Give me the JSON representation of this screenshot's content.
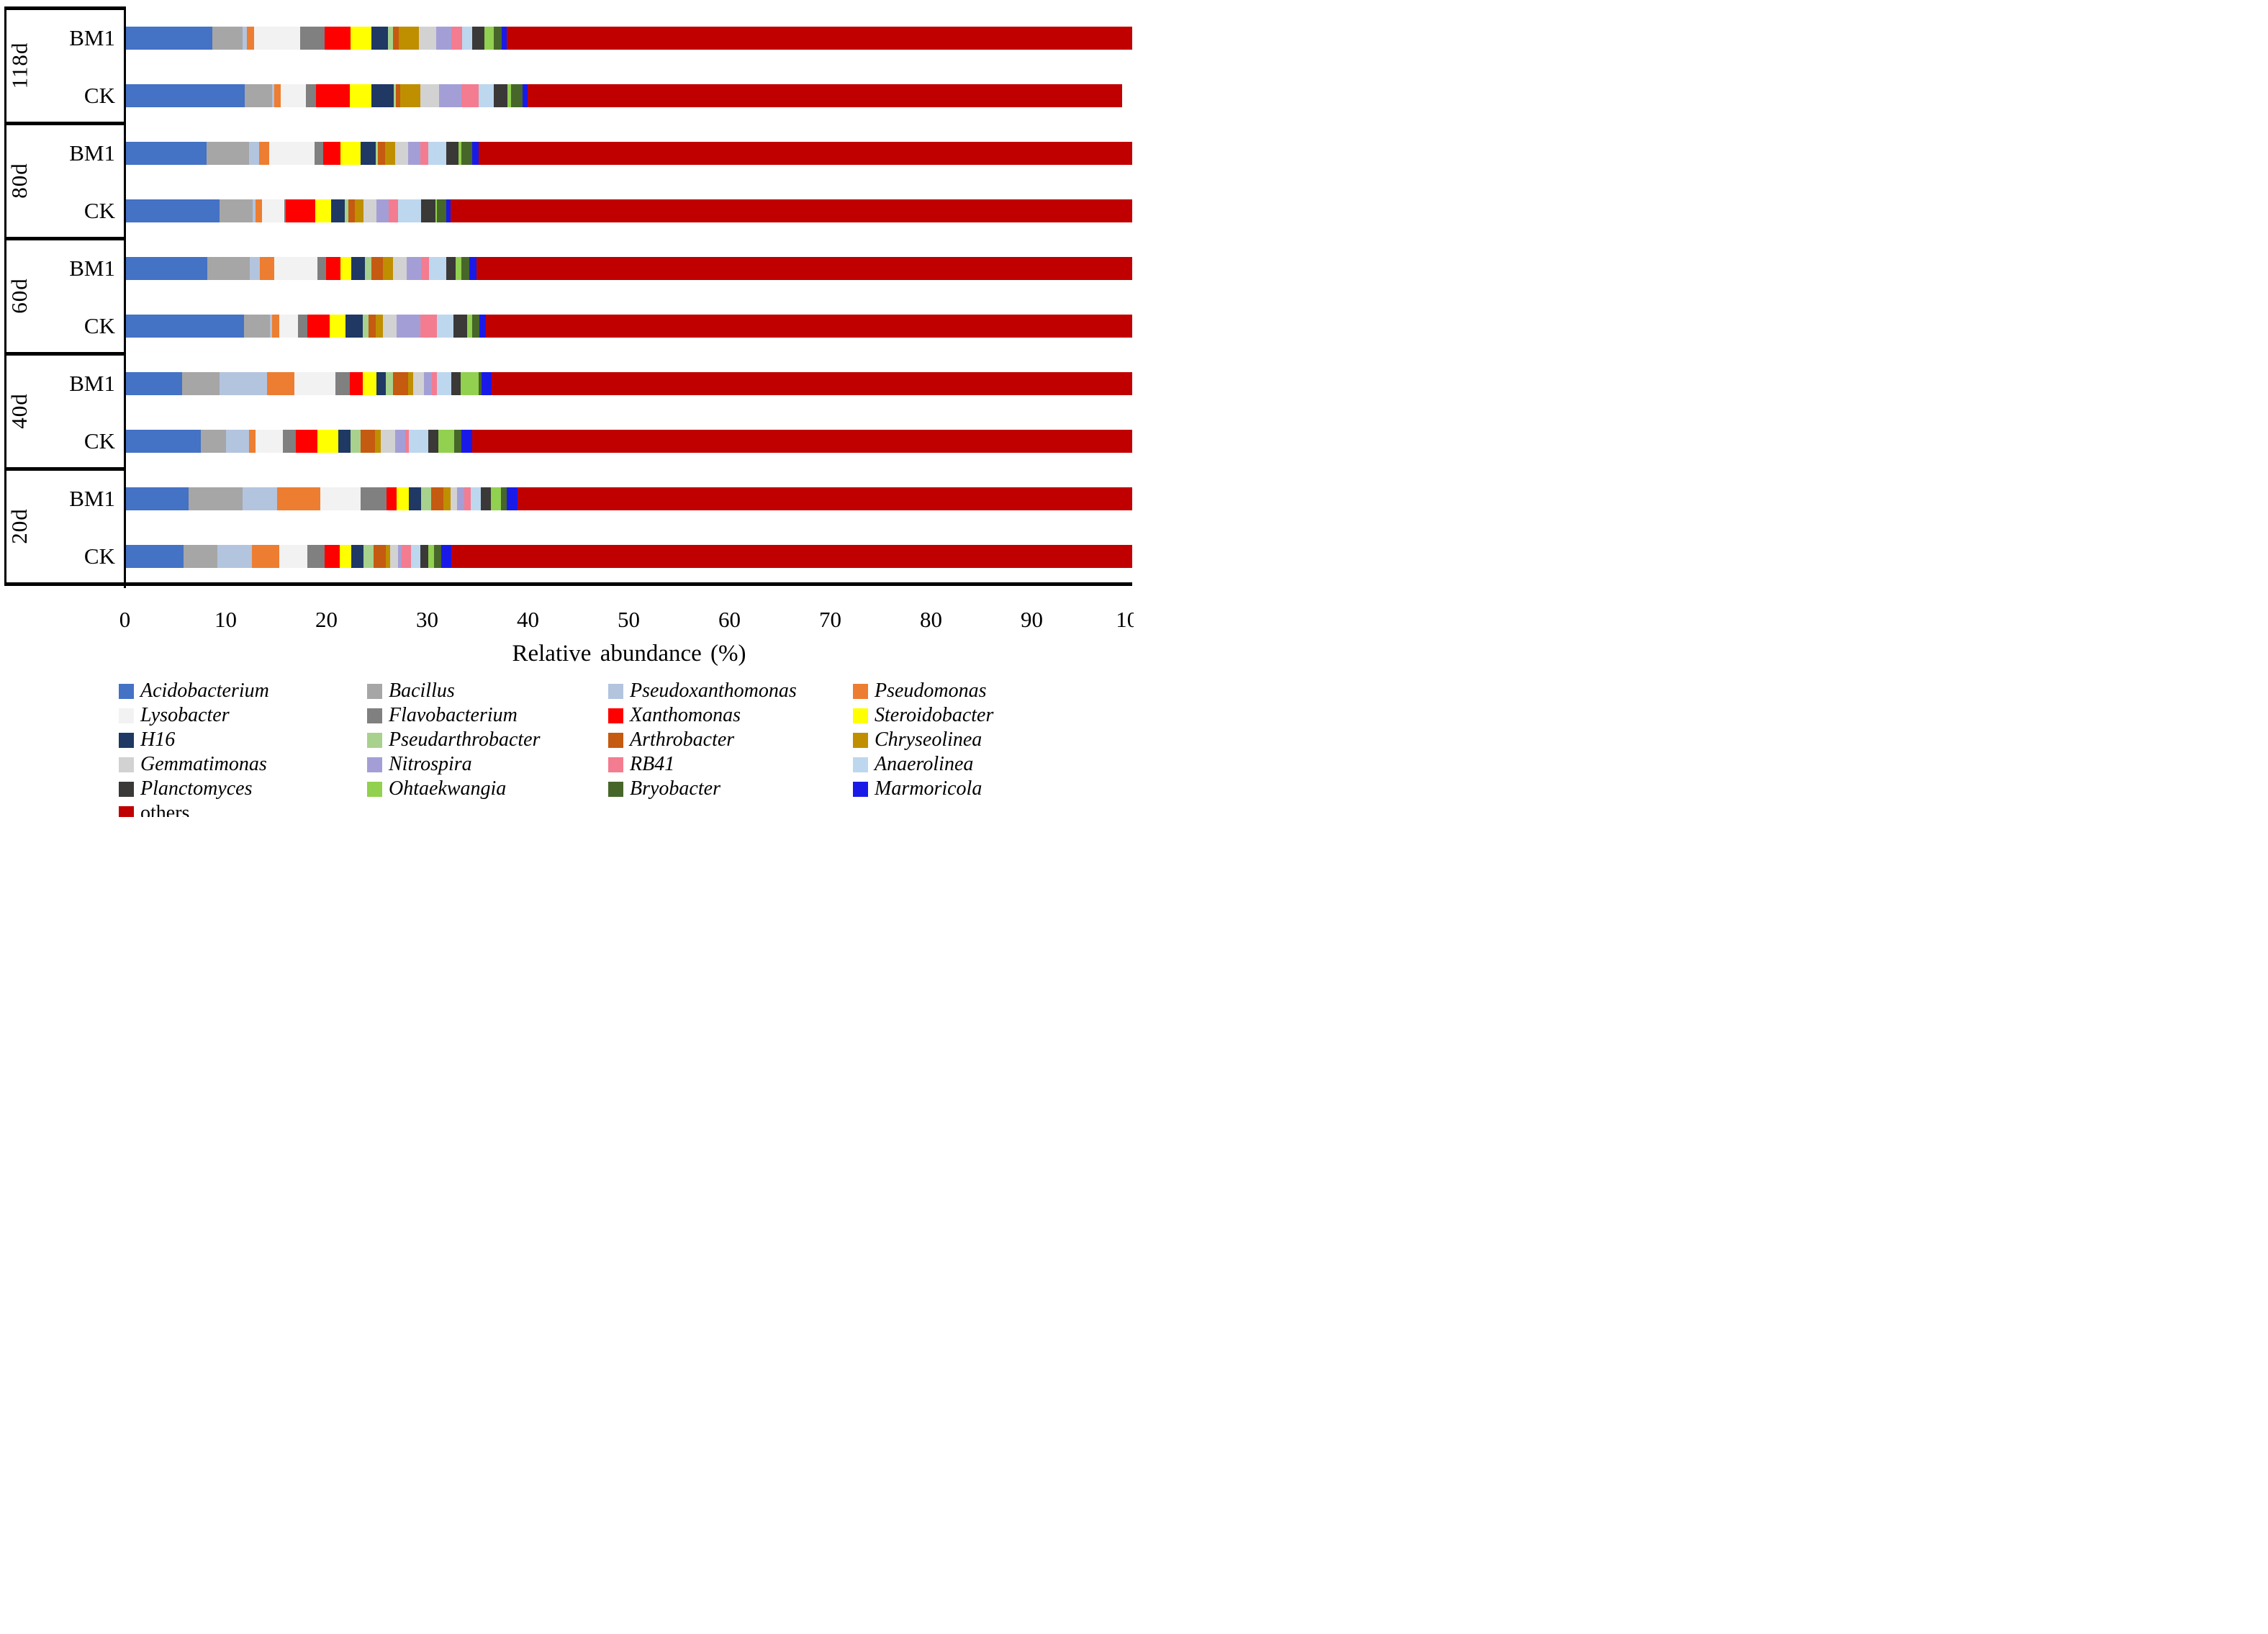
{
  "chart_data": {
    "type": "bar",
    "orientation": "horizontal-stacked",
    "xlabel": "Relative  abundance (%)",
    "xlim": [
      0,
      100
    ],
    "x_ticks": [
      0,
      10,
      20,
      30,
      40,
      50,
      60,
      70,
      80,
      90,
      100
    ],
    "grid": false,
    "legend_position": "bottom",
    "series_names": [
      "Acidobacterium",
      "Bacillus",
      "Pseudoxanthomonas",
      "Pseudomonas",
      "Lysobacter",
      "Flavobacterium",
      "Xanthomonas",
      "Steroidobacter",
      "H16",
      "Pseudarthrobacter",
      "Arthrobacter",
      "Chryseolinea",
      "Gemmatimonas",
      "Nitrospira",
      "RB41",
      "Anaerolinea",
      "Planctomyces",
      "Ohtaekwangia",
      "Bryobacter",
      "Marmoricola",
      "others"
    ],
    "series_colors": [
      "#4472C4",
      "#A6A6A6",
      "#B3C4DE",
      "#ED7D31",
      "#F2F2F2",
      "#808080",
      "#FF0000",
      "#FFFF00",
      "#1F3864",
      "#A9D18E",
      "#C55A11",
      "#BF8F00",
      "#D2D2D2",
      "#A39FD6",
      "#F47C90",
      "#BDD7EE",
      "#3B3838",
      "#92D050",
      "#476629",
      "#1A1AE8",
      "#C00000"
    ],
    "series_italic": [
      true,
      true,
      true,
      true,
      true,
      true,
      true,
      true,
      true,
      true,
      true,
      true,
      true,
      true,
      true,
      true,
      true,
      true,
      true,
      true,
      false
    ],
    "groups": [
      {
        "label": "118d",
        "bars": [
          {
            "label": "BM1",
            "values": [
              8.7,
              3.0,
              0.4,
              0.7,
              4.6,
              2.4,
              2.6,
              2.1,
              1.6,
              0.5,
              0.6,
              2.0,
              1.7,
              1.5,
              1.1,
              1.0,
              1.2,
              0.9,
              0.8,
              0.5,
              62.1
            ]
          },
          {
            "label": "CK",
            "values": [
              11.9,
              2.7,
              0.2,
              0.7,
              2.5,
              1.0,
              3.3,
              2.2,
              2.2,
              0.2,
              0.4,
              2.0,
              1.9,
              2.2,
              1.7,
              1.5,
              1.4,
              0.3,
              1.2,
              0.5,
              59.0
            ]
          }
        ]
      },
      {
        "label": "80d",
        "bars": [
          {
            "label": "BM1",
            "values": [
              8.1,
              4.2,
              1.0,
              1.0,
              4.5,
              0.9,
              1.7,
              2.0,
              1.5,
              0.2,
              0.7,
              1.0,
              1.3,
              1.2,
              0.8,
              1.8,
              1.2,
              0.3,
              1.1,
              0.6,
              64.9
            ]
          },
          {
            "label": "CK",
            "values": [
              9.4,
              3.3,
              0.3,
              0.6,
              2.2,
              0.2,
              2.9,
              1.6,
              1.3,
              0.4,
              0.6,
              0.9,
              1.3,
              1.2,
              0.9,
              2.3,
              1.4,
              0.2,
              0.9,
              0.4,
              67.7
            ]
          }
        ]
      },
      {
        "label": "60d",
        "bars": [
          {
            "label": "BM1",
            "values": [
              8.2,
              4.2,
              1.0,
              1.4,
              4.3,
              0.9,
              1.4,
              1.1,
              1.3,
              0.7,
              1.1,
              1.0,
              1.4,
              1.4,
              0.8,
              1.7,
              0.9,
              0.6,
              0.8,
              0.7,
              65.1
            ]
          },
          {
            "label": "CK",
            "values": [
              11.8,
              2.6,
              0.2,
              0.7,
              1.9,
              0.9,
              2.2,
              1.6,
              1.7,
              0.6,
              0.7,
              0.7,
              1.4,
              2.3,
              1.7,
              1.6,
              1.4,
              0.5,
              0.7,
              0.6,
              64.2
            ]
          }
        ]
      },
      {
        "label": "40d",
        "bars": [
          {
            "label": "BM1",
            "values": [
              5.7,
              3.7,
              4.7,
              2.7,
              4.1,
              1.4,
              1.3,
              1.4,
              0.9,
              0.7,
              1.5,
              0.5,
              1.1,
              0.8,
              0.5,
              1.4,
              0.9,
              1.8,
              0.3,
              1.0,
              63.6
            ]
          },
          {
            "label": "CK",
            "values": [
              7.5,
              2.5,
              2.3,
              0.7,
              2.7,
              1.3,
              2.1,
              2.1,
              1.2,
              1.0,
              1.4,
              0.6,
              1.4,
              1.0,
              0.4,
              1.9,
              1.0,
              1.6,
              0.7,
              1.1,
              65.5
            ]
          }
        ]
      },
      {
        "label": "20d",
        "bars": [
          {
            "label": "BM1",
            "values": [
              6.3,
              5.4,
              3.4,
              4.3,
              4.0,
              2.6,
              1.0,
              1.2,
              1.2,
              1.0,
              1.2,
              0.7,
              0.7,
              0.7,
              0.6,
              1.0,
              1.0,
              1.0,
              0.6,
              1.1,
              61.0
            ]
          },
          {
            "label": "CK",
            "values": [
              5.8,
              3.4,
              3.4,
              2.7,
              2.8,
              1.7,
              1.5,
              1.2,
              1.2,
              1.0,
              1.2,
              0.4,
              0.8,
              0.4,
              0.9,
              0.9,
              0.8,
              0.6,
              0.7,
              1.0,
              67.6
            ]
          }
        ]
      }
    ]
  }
}
